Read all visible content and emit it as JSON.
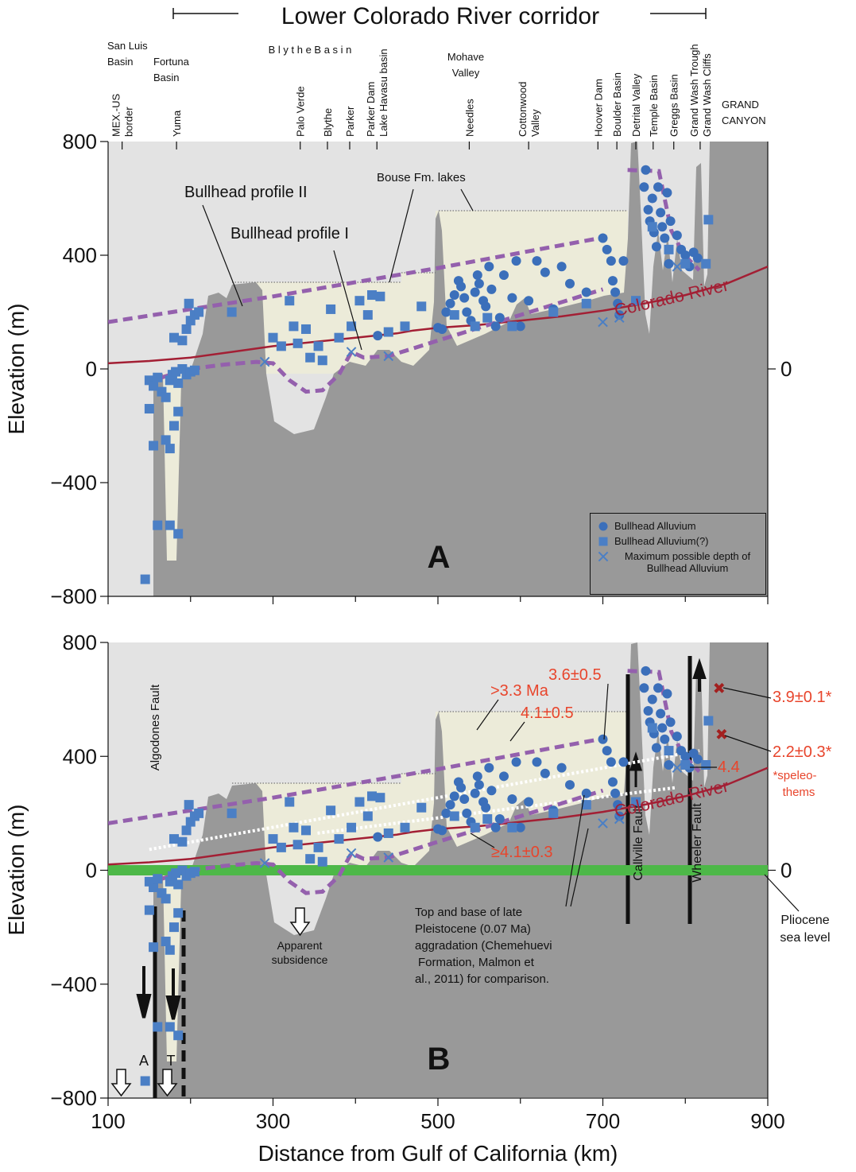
{
  "chart_data": {
    "type": "scatter",
    "title": "Lower Colorado River corridor",
    "xlabel": "Distance from Gulf of California (km)",
    "ylabel": "Elevation (m)",
    "xlim": [
      100,
      900
    ],
    "ylim": [
      -800,
      800
    ],
    "xticks": [
      100,
      300,
      500,
      700,
      900
    ],
    "yticks": [
      {
        "value": -800,
        "label": "−800"
      },
      {
        "value": -400,
        "label": "−400"
      },
      0,
      400,
      800
    ],
    "y2lim": [
      -800,
      800
    ],
    "y2ticks": [
      0
    ],
    "regions": [
      [
        "San Luis",
        "Basin"
      ],
      [
        "Fortuna",
        "Basin"
      ],
      [
        "B l y t h e  B a s i n"
      ],
      [
        "Mohave",
        "Valley"
      ],
      [
        "GRAND",
        "CANYON"
      ]
    ],
    "locations": [
      {
        "label": [
          "MEX.-US",
          "border"
        ],
        "km": 117
      },
      {
        "label": [
          "Yuma"
        ],
        "km": 183
      },
      {
        "label": [
          "Palo Verde"
        ],
        "km": 333
      },
      {
        "label": [
          "Blythe"
        ],
        "km": 366
      },
      {
        "label": [
          "Parker"
        ],
        "km": 393
      },
      {
        "label": [
          "Parker Dam",
          "Lake Havasu basin"
        ],
        "km": 426
      },
      {
        "label": [
          "Needles"
        ],
        "km": 538
      },
      {
        "label": [
          "Cottonwood",
          "Valley"
        ],
        "km": 610
      },
      {
        "label": [
          "Hoover Dam"
        ],
        "km": 694
      },
      {
        "label": [
          "Boulder Basin"
        ],
        "km": 717
      },
      {
        "label": [
          "Detrital Valley"
        ],
        "km": 740
      },
      {
        "label": [
          "Temple Basin"
        ],
        "km": 761
      },
      {
        "label": [
          "Greggs Basin"
        ],
        "km": 786
      },
      {
        "label": [
          "Grand Wash Trough",
          "Grand Wash Cliffs"
        ],
        "km": 818
      }
    ],
    "series": [
      {
        "name": "Bullhead Alluvium",
        "marker": "circle",
        "color": "#3b6fba",
        "x": [
          427,
          500,
          505,
          510,
          515,
          520,
          525,
          528,
          532,
          535,
          540,
          545,
          548,
          550,
          555,
          558,
          562,
          565,
          570,
          575,
          580,
          590,
          595,
          600,
          610,
          620,
          630,
          640,
          650,
          660,
          680,
          700,
          705,
          710,
          712,
          715,
          718,
          720,
          725,
          750,
          752,
          755,
          757,
          760,
          762,
          765,
          767,
          770,
          772,
          775,
          778,
          780,
          782,
          790,
          795,
          800,
          805,
          810,
          815
        ],
        "values": [
          117,
          145,
          140,
          200,
          230,
          260,
          310,
          290,
          250,
          200,
          170,
          270,
          330,
          300,
          240,
          220,
          360,
          280,
          150,
          180,
          330,
          250,
          380,
          150,
          240,
          380,
          340,
          210,
          360,
          300,
          270,
          460,
          420,
          380,
          310,
          270,
          230,
          190,
          380,
          640,
          700,
          560,
          520,
          600,
          480,
          430,
          640,
          550,
          500,
          460,
          620,
          370,
          520,
          470,
          420,
          400,
          360,
          410,
          390
        ]
      },
      {
        "name": "Bullhead Alluvium(?)",
        "marker": "square",
        "color": "#4b7fc5",
        "x": [
          145,
          150,
          150,
          155,
          155,
          160,
          160,
          165,
          170,
          170,
          175,
          175,
          175,
          178,
          180,
          180,
          182,
          185,
          185,
          185,
          190,
          190,
          195,
          195,
          198,
          200,
          200,
          205,
          205,
          210,
          250,
          300,
          310,
          320,
          325,
          330,
          340,
          345,
          355,
          360,
          370,
          380,
          395,
          405,
          415,
          420,
          430,
          440,
          460,
          480,
          520,
          545,
          560,
          590,
          640,
          680,
          740,
          760,
          780,
          800,
          825,
          828
        ],
        "values": [
          -740,
          -40,
          -140,
          -60,
          -270,
          -30,
          -550,
          -80,
          -100,
          -250,
          -40,
          -280,
          -550,
          -20,
          110,
          -200,
          -10,
          -50,
          -150,
          -580,
          0,
          100,
          -20,
          140,
          230,
          -10,
          170,
          -5,
          190,
          200,
          200,
          110,
          80,
          240,
          150,
          90,
          140,
          40,
          80,
          30,
          210,
          110,
          150,
          240,
          190,
          260,
          255,
          130,
          150,
          220,
          190,
          150,
          180,
          150,
          200,
          230,
          240,
          500,
          420,
          370,
          370,
          525
        ]
      },
      {
        "name": "Maximum possible depth of Bullhead Alluvium",
        "marker": "x",
        "color": "#4b7fc5",
        "x": [
          290,
          395,
          440,
          700,
          720,
          790
        ],
        "values": [
          25,
          60,
          45,
          165,
          180,
          360
        ]
      }
    ],
    "lines": [
      {
        "name": "Colorado River",
        "color": "#a31f34",
        "dashed": false,
        "x": [
          100,
          150,
          200,
          250,
          300,
          350,
          400,
          450,
          470,
          500,
          550,
          600,
          650,
          700,
          750,
          800,
          850,
          900
        ],
        "values": [
          20,
          28,
          40,
          60,
          80,
          95,
          110,
          125,
          135,
          145,
          155,
          170,
          185,
          205,
          230,
          260,
          300,
          360
        ]
      },
      {
        "name": "Bullhead  profile II",
        "color": "#9460ad",
        "dashed": true,
        "x": [
          100,
          300,
          500,
          705,
          720,
          730,
          768,
          783,
          798,
          817
        ],
        "values": [
          165,
          255,
          355,
          465,
          null,
          700,
          696,
          487,
          403,
          347
        ]
      },
      {
        "name": "Bullhead profile I",
        "color": "#9460ad",
        "dashed": true,
        "x": [
          165,
          200,
          240,
          280,
          300,
          320,
          340,
          360,
          380,
          395,
          410,
          440,
          500,
          600,
          700
        ],
        "values": [
          -30,
          0,
          15,
          25,
          20,
          -40,
          -80,
          -75,
          -20,
          60,
          40,
          45,
          100,
          190,
          280
        ]
      }
    ],
    "chemehuevi": [
      {
        "x": [
          150,
          817
        ],
        "values": [
          73,
          420
        ]
      },
      {
        "x": [
          354,
          788
        ],
        "values": [
          130,
          290
        ]
      }
    ],
    "speleothems": {
      "color": "#a3201f",
      "x": [
        841,
        844
      ],
      "values": [
        640,
        478
      ],
      "ages": [
        "3.9±0.1*",
        "2.2±0.3*"
      ]
    },
    "sea_level": {
      "label": [
        "Pliocene",
        "sea  level"
      ],
      "value": 0,
      "color": "#4db848"
    },
    "panels": [
      {
        "label": "A",
        "bouse_label": "Bouse  Fm.  lakes"
      },
      {
        "label": "B",
        "algodones": "Algodones Fault",
        "callville": "Callville  Fault",
        "wheeler": "Wheeler  Fault",
        "ages": [
          ">3.3  Ma",
          "4.1±0.5",
          "3.6±0.5",
          "4.4",
          "≥4.1±0.3"
        ],
        "speleothem_note": [
          "*speleo-",
          "thems"
        ],
        "chemehuevi_note": [
          "Top and base of late",
          "Pleistocene (0.07 Ma)",
          "aggradation (Chemehuevi",
          "Formation,  Malmon et",
          "al., 2011) for comparison."
        ],
        "subsidence": [
          "Apparent",
          "subsidence"
        ],
        "fault_letters": [
          "A",
          "T"
        ]
      }
    ]
  }
}
